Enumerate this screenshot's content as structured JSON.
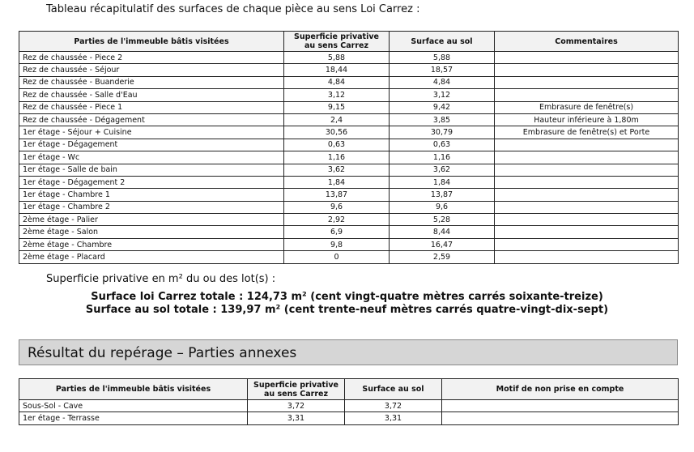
{
  "intro": "Tableau récapitulatif des surfaces de chaque pièce au sens Loi Carrez :",
  "table1": {
    "headers": [
      "Parties de l'immeuble bâtis visitées",
      "Superficie privative au sens Carrez",
      "Surface au sol",
      "Commentaires"
    ],
    "rows": [
      [
        "Rez de chaussée - Piece 2",
        "5,88",
        "5,88",
        ""
      ],
      [
        "Rez de chaussée - Séjour",
        "18,44",
        "18,57",
        ""
      ],
      [
        "Rez de chaussée - Buanderie",
        "4,84",
        "4,84",
        ""
      ],
      [
        "Rez de chaussée - Salle d'Eau",
        "3,12",
        "3,12",
        ""
      ],
      [
        "Rez de chaussée - Piece 1",
        "9,15",
        "9,42",
        "Embrasure de fenêtre(s)"
      ],
      [
        "Rez de chaussée - Dégagement",
        "2,4",
        "3,85",
        "Hauteur inférieure à 1,80m"
      ],
      [
        "1er étage - Séjour + Cuisine",
        "30,56",
        "30,79",
        "Embrasure de fenêtre(s) et Porte"
      ],
      [
        "1er étage - Dégagement",
        "0,63",
        "0,63",
        ""
      ],
      [
        "1er étage - Wc",
        "1,16",
        "1,16",
        ""
      ],
      [
        "1er étage - Salle de bain",
        "3,62",
        "3,62",
        ""
      ],
      [
        "1er étage - Dégagement 2",
        "1,84",
        "1,84",
        ""
      ],
      [
        "1er étage - Chambre 1",
        "13,87",
        "13,87",
        ""
      ],
      [
        "1er étage - Chambre 2",
        "9,6",
        "9,6",
        ""
      ],
      [
        "2ème étage - Palier",
        "2,92",
        "5,28",
        ""
      ],
      [
        "2ème étage - Salon",
        "6,9",
        "8,44",
        ""
      ],
      [
        "2ème étage - Chambre",
        "9,8",
        "16,47",
        ""
      ],
      [
        "2ème étage - Placard",
        "0",
        "2,59",
        ""
      ]
    ]
  },
  "subtitle": "Superficie privative en m² du ou des lot(s) :",
  "total_carrez": "Surface loi Carrez totale : 124,73 m² (cent vingt-quatre mètres carrés soixante-treize)",
  "total_sol": "Surface au sol totale : 139,97 m² (cent trente-neuf mètres carrés quatre-vingt-dix-sept)",
  "section_title": "Résultat du repérage – Parties annexes",
  "table2": {
    "headers": [
      "Parties de l'immeuble bâtis visitées",
      "Superficie privative au sens Carrez",
      "Surface au sol",
      "Motif de non prise en compte"
    ],
    "rows": [
      [
        "Sous-Sol - Cave",
        "3,72",
        "3,72",
        ""
      ],
      [
        "1er étage - Terrasse",
        "3,31",
        "3,31",
        ""
      ]
    ]
  }
}
